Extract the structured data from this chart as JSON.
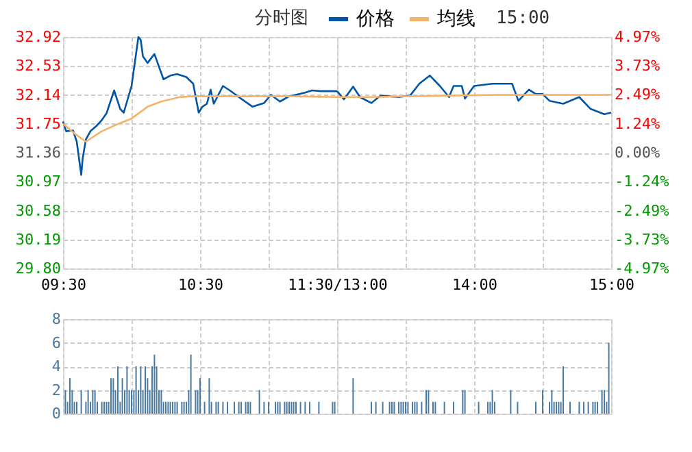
{
  "chart_data": [
    {
      "type": "line",
      "annotations": [
        "分时图"
      ],
      "legend": "top",
      "grid": true,
      "line_style": "solid",
      "marker": "none",
      "xlim": [
        9.5,
        11.5
      ],
      "xticks": [
        {
          "value": 9.5,
          "label": "09:30"
        },
        {
          "value": 10,
          "label": null
        },
        {
          "value": 10.5,
          "label": "10:30"
        },
        {
          "value": 11,
          "label": null
        },
        {
          "value": 11.5,
          "label": "11:30/13:00"
        }
      ],
      "ylim": [
        29.8,
        32.92
      ],
      "yticks": [
        {
          "value": 29.8,
          "label": "29.80"
        },
        30.19,
        30.58,
        30.97,
        31.36,
        31.75,
        32.14,
        32.53,
        32.92
      ],
      "series": [
        {
          "name": "价格",
          "color": "#0055a5",
          "x": [
            9.5,
            9.523,
            9.573,
            9.6,
            9.633,
            9.643,
            9.667,
            9.7,
            9.743,
            9.783,
            9.817,
            9.873,
            9.917,
            9.943,
            10,
            10.05,
            10.067,
            10.083,
            10.117,
            10.167,
            10.233,
            10.283,
            10.333,
            10.4,
            10.45,
            10.49,
            10.517,
            10.55,
            10.577,
            10.6,
            10.667,
            10.717,
            10.783,
            10.883,
            10.967,
            11.017,
            11.083,
            11.15,
            11.267,
            11.317,
            11.383,
            11.483,
            11.5
          ],
          "values": [
            31.78,
            31.65,
            31.66,
            31.51,
            31.06,
            31.28,
            31.54,
            31.65,
            31.72,
            31.8,
            31.89,
            32.2,
            31.95,
            31.9,
            32.26,
            32.92,
            32.88,
            32.66,
            32.57,
            32.69,
            32.35,
            32.4,
            32.42,
            32.38,
            32.29,
            31.9,
            31.98,
            32.02,
            32.21,
            32.02,
            32.26,
            32.2,
            32.11,
            31.98,
            32.03,
            32.14,
            32.05,
            32.12,
            32.17,
            32.2,
            32.19,
            32.19,
            32.19
          ]
        },
        {
          "name": "均线",
          "color": "#f4b26b",
          "x": [
            9.5,
            9.583,
            9.667,
            9.783,
            9.917,
            10,
            10.117,
            10.217,
            10.35,
            10.45,
            11.167,
            11.5
          ],
          "values": [
            31.75,
            31.62,
            31.51,
            31.65,
            31.76,
            31.82,
            31.98,
            32.05,
            32.11,
            32.12,
            32.12,
            32.11
          ]
        }
      ]
    },
    {
      "type": "line",
      "annotations": [
        "15:00"
      ],
      "grid": true,
      "line_style": "solid",
      "marker": "none",
      "tick_labels": "x",
      "xlim": [
        13,
        15
      ],
      "xticks": [
        {
          "value": 13,
          "label": null
        },
        {
          "value": 13.5,
          "label": null
        },
        {
          "value": 14,
          "label": "14:00"
        },
        {
          "value": 14.5,
          "label": null
        },
        {
          "value": 15,
          "label": "15:00"
        }
      ],
      "ylim": [
        29.8,
        32.92
      ],
      "yticks": [
        29.8,
        30.19,
        30.58,
        30.97,
        31.36,
        31.75,
        32.14,
        32.53,
        32.92
      ],
      "y2lim": [
        -4.97,
        4.97
      ],
      "y2ticks": [
        {
          "value": -4.97,
          "label": "-4.97%"
        },
        {
          "value": -3.73,
          "label": "-3.73%"
        },
        {
          "value": -2.49,
          "label": "-2.49%"
        },
        {
          "value": -1.24,
          "label": "-1.24%"
        },
        {
          "value": 0,
          "label": "0.00%"
        },
        {
          "value": 1.24,
          "label": "1.24%"
        },
        {
          "value": 2.49,
          "label": "2.49%"
        },
        {
          "value": 3.73,
          "label": "3.73%"
        },
        {
          "value": 4.97,
          "label": "4.97%"
        }
      ],
      "series": [
        {
          "color": "#0055a5",
          "x": [
            13,
            13.05,
            13.117,
            13.167,
            13.25,
            13.317,
            13.45,
            13.533,
            13.6,
            13.677,
            13.75,
            13.817,
            13.85,
            13.91,
            13.933,
            14,
            14.133,
            14.217,
            14.277,
            14.323,
            14.4,
            14.45,
            14.5,
            14.55,
            14.65,
            14.767,
            14.85,
            14.95,
            15
          ],
          "values": [
            32.19,
            32.08,
            32.25,
            32.11,
            32.03,
            32.13,
            32.11,
            32.13,
            32.29,
            32.4,
            32.26,
            32.11,
            32.26,
            32.26,
            32.09,
            32.26,
            32.29,
            32.29,
            32.29,
            32.06,
            32.21,
            32.15,
            32.15,
            32.06,
            32.02,
            32.11,
            31.95,
            31.88,
            31.9
          ]
        },
        {
          "color": "#f4b26b",
          "x": [
            13,
            13.25,
            13.5,
            14.167,
            15
          ],
          "values": [
            32.11,
            32.11,
            32.12,
            32.14,
            32.14
          ]
        }
      ]
    },
    {
      "type": "bar",
      "grid": true,
      "tick_labels": "y",
      "xlim": [
        9.5,
        11.5
      ],
      "xticks": [
        {
          "value": 9.5,
          "label": null
        },
        {
          "value": 10,
          "label": null
        },
        {
          "value": 10.5,
          "label": null
        },
        {
          "value": 11,
          "label": null
        },
        {
          "value": 11.5,
          "label": null
        }
      ],
      "ylim": [
        0,
        8
      ],
      "yticks": [
        0,
        2,
        4,
        6,
        8
      ],
      "color": "#4a7aa3",
      "x": [
        9.517,
        9.533,
        9.55,
        9.567,
        9.583,
        9.6,
        9.633,
        9.667,
        9.683,
        9.7,
        9.717,
        9.733,
        9.75,
        9.783,
        9.8,
        9.817,
        9.833,
        9.85,
        9.867,
        9.883,
        9.9,
        9.917,
        9.933,
        9.95,
        9.967,
        9.983,
        10,
        10.017,
        10.033,
        10.05,
        10.067,
        10.083,
        10.1,
        10.117,
        10.133,
        10.15,
        10.167,
        10.183,
        10.2,
        10.217,
        10.233,
        10.25,
        10.267,
        10.283,
        10.3,
        10.317,
        10.333,
        10.367,
        10.383,
        10.4,
        10.417,
        10.433,
        10.467,
        10.483,
        10.5,
        10.533,
        10.567,
        10.583,
        10.617,
        10.633,
        10.667,
        10.7,
        10.75,
        10.783,
        10.8,
        10.833,
        10.85,
        10.867,
        10.933,
        10.967,
        11,
        11.05,
        11.067,
        11.083,
        11.117,
        11.133,
        11.15,
        11.167,
        11.183,
        11.2,
        11.233,
        11.267,
        11.3,
        11.367,
        11.467,
        11.483
      ],
      "values": [
        2,
        1,
        3,
        2,
        1,
        1,
        2,
        1,
        2,
        1,
        2,
        2,
        1,
        1,
        1,
        1,
        1,
        3,
        3,
        2,
        4,
        1,
        3,
        2,
        4,
        2,
        2,
        2,
        4,
        2,
        4,
        2,
        4,
        3,
        2,
        4,
        5,
        4,
        2,
        2,
        1,
        1,
        1,
        1,
        1,
        1,
        1,
        1,
        1,
        1,
        2,
        5,
        2,
        2,
        3,
        1,
        3,
        1,
        1,
        1,
        1,
        1,
        1,
        1,
        1,
        1,
        1,
        1,
        2,
        1,
        1,
        1,
        1,
        1,
        1,
        1,
        1,
        1,
        1,
        1,
        1,
        1,
        1,
        1,
        1,
        1
      ]
    },
    {
      "type": "bar",
      "grid": true,
      "tick_labels": false,
      "xlim": [
        13,
        15
      ],
      "xticks": [
        {
          "value": 13,
          "label": null
        },
        {
          "value": 13.5,
          "label": null
        },
        {
          "value": 14,
          "label": null
        },
        {
          "value": 14.5,
          "label": null
        },
        {
          "value": 15,
          "label": null
        }
      ],
      "ylim": [
        0,
        8
      ],
      "yticks": [
        0,
        2,
        4,
        6,
        8
      ],
      "color": "#4a7aa3",
      "x": [
        13.117,
        13.25,
        13.283,
        13.333,
        13.383,
        13.4,
        13.417,
        13.45,
        13.467,
        13.483,
        13.5,
        13.517,
        13.55,
        13.567,
        13.583,
        13.617,
        13.65,
        13.667,
        13.7,
        13.717,
        13.783,
        13.85,
        13.917,
        13.933,
        14.033,
        14.1,
        14.117,
        14.133,
        14.15,
        14.267,
        14.317,
        14.45,
        14.5,
        14.55,
        14.567,
        14.583,
        14.6,
        14.617,
        14.633,
        14.65,
        14.7,
        14.767,
        14.8,
        14.833,
        14.867,
        14.883,
        14.9,
        14.933,
        14.95,
        14.967,
        14.983
      ],
      "values": [
        3,
        1,
        1,
        1,
        1,
        1,
        1,
        1,
        1,
        1,
        1,
        1,
        1,
        1,
        1,
        1,
        2,
        2,
        1,
        1,
        1,
        1,
        2,
        2,
        1,
        1,
        1,
        2,
        1,
        2,
        1,
        1,
        2,
        1,
        2,
        1,
        1,
        1,
        1,
        4,
        1,
        1,
        1,
        1,
        1,
        1,
        1,
        2,
        2,
        1,
        6
      ]
    }
  ]
}
